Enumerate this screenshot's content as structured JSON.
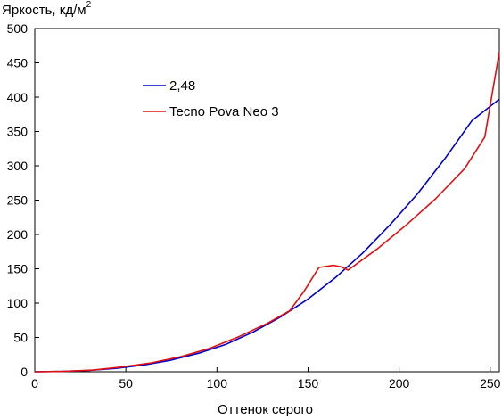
{
  "chart_data": {
    "type": "line",
    "ylabel": "Яркость, кд/м",
    "ylabel_sup": "2",
    "xlabel": "Оттенок серого",
    "xlim": [
      0,
      255
    ],
    "ylim": [
      0,
      500
    ],
    "xticks": [
      0,
      50,
      100,
      150,
      200,
      250
    ],
    "yticks": [
      0,
      50,
      100,
      150,
      200,
      250,
      300,
      350,
      400,
      450,
      500
    ],
    "grid": false,
    "legend_position": "upper-left",
    "series": [
      {
        "name": "2,48",
        "color": "#0000cc",
        "x": [
          0,
          15,
          30,
          45,
          60,
          75,
          90,
          105,
          120,
          135,
          150,
          165,
          180,
          195,
          210,
          225,
          240,
          255
        ],
        "y": [
          0,
          0.5,
          2,
          5,
          10,
          17,
          27,
          40,
          58,
          80,
          106,
          137,
          173,
          214,
          259,
          310,
          366,
          397
        ]
      },
      {
        "name": "Tecno Pova Neo 3",
        "color": "#e01010",
        "x": [
          0,
          16,
          32,
          48,
          64,
          80,
          96,
          112,
          128,
          140,
          148,
          156,
          164,
          168,
          172,
          188,
          204,
          220,
          236,
          247,
          255
        ],
        "y": [
          0,
          0.5,
          2.5,
          7,
          13,
          22,
          34,
          51,
          71,
          89,
          118,
          152,
          155,
          153,
          148,
          179,
          214,
          252,
          296,
          342,
          466
        ]
      }
    ]
  }
}
